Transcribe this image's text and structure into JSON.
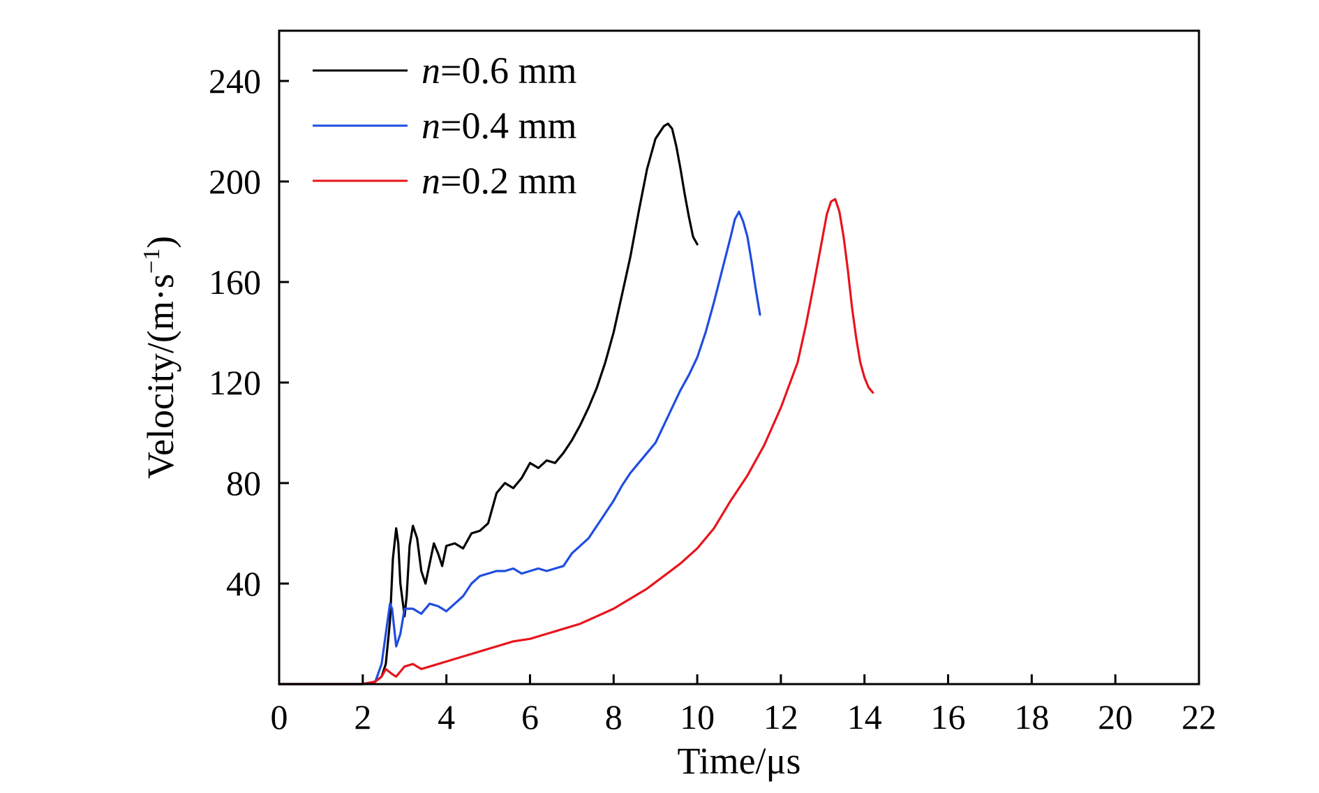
{
  "chart_data": {
    "type": "line",
    "title": "",
    "xlabel": "Time/μs",
    "ylabel_main": "Velocity/(m·s",
    "ylabel_sup": "−1",
    "ylabel_close": ")",
    "xlim": [
      0,
      22
    ],
    "ylim": [
      0,
      260
    ],
    "xticks": [
      0,
      2,
      4,
      6,
      8,
      10,
      12,
      14,
      16,
      18,
      20,
      22
    ],
    "yticks": [
      40,
      80,
      120,
      160,
      200,
      240
    ],
    "grid": false,
    "legend_position": "top-left",
    "series": [
      {
        "name": "n=0.6 mm",
        "name_italic": "n",
        "name_rest": "=0.6 mm",
        "color": "#000000",
        "x": [
          0,
          2.0,
          2.3,
          2.45,
          2.55,
          2.65,
          2.72,
          2.8,
          2.85,
          2.9,
          3.0,
          3.05,
          3.12,
          3.2,
          3.3,
          3.4,
          3.5,
          3.6,
          3.7,
          3.8,
          3.9,
          4.0,
          4.2,
          4.4,
          4.6,
          4.8,
          5.0,
          5.2,
          5.4,
          5.6,
          5.8,
          6.0,
          6.2,
          6.4,
          6.6,
          6.8,
          7.0,
          7.2,
          7.4,
          7.6,
          7.8,
          8.0,
          8.2,
          8.4,
          8.6,
          8.8,
          9.0,
          9.2,
          9.3,
          9.4,
          9.5,
          9.6,
          9.7,
          9.8,
          9.9,
          10.0
        ],
        "y": [
          0,
          0,
          1,
          3,
          8,
          25,
          50,
          62,
          56,
          40,
          27,
          35,
          55,
          63,
          58,
          45,
          40,
          48,
          56,
          52,
          47,
          55,
          56,
          54,
          60,
          61,
          64,
          76,
          80,
          78,
          82,
          88,
          86,
          89,
          88,
          92,
          97,
          103,
          110,
          118,
          128,
          140,
          155,
          170,
          188,
          205,
          217,
          222,
          223,
          221,
          214,
          205,
          195,
          186,
          178,
          175
        ]
      },
      {
        "name": "n=0.4 mm",
        "name_italic": "n",
        "name_rest": "=0.4 mm",
        "color": "#1f4de0",
        "x": [
          0,
          2.0,
          2.3,
          2.45,
          2.55,
          2.65,
          2.7,
          2.8,
          2.9,
          3.0,
          3.2,
          3.4,
          3.6,
          3.8,
          4.0,
          4.2,
          4.4,
          4.6,
          4.8,
          5.0,
          5.2,
          5.4,
          5.6,
          5.8,
          6.0,
          6.2,
          6.4,
          6.6,
          6.8,
          7.0,
          7.2,
          7.4,
          7.6,
          7.8,
          8.0,
          8.2,
          8.4,
          8.6,
          8.8,
          9.0,
          9.2,
          9.4,
          9.6,
          9.8,
          10.0,
          10.2,
          10.4,
          10.6,
          10.8,
          10.9,
          11.0,
          11.1,
          11.2,
          11.3,
          11.4,
          11.5
        ],
        "y": [
          0,
          0,
          1,
          8,
          20,
          32,
          30,
          15,
          20,
          30,
          30,
          28,
          32,
          31,
          29,
          32,
          35,
          40,
          43,
          44,
          45,
          45,
          46,
          44,
          45,
          46,
          45,
          46,
          47,
          52,
          55,
          58,
          63,
          68,
          73,
          79,
          84,
          88,
          92,
          96,
          103,
          110,
          117,
          123,
          130,
          140,
          152,
          165,
          178,
          185,
          188,
          184,
          178,
          168,
          157,
          147
        ]
      },
      {
        "name": "n=0.2 mm",
        "name_italic": "n",
        "name_rest": "=0.2 mm",
        "color": "#e8141c",
        "x": [
          0,
          2.0,
          2.3,
          2.45,
          2.55,
          2.7,
          2.8,
          2.9,
          3.0,
          3.2,
          3.4,
          3.6,
          3.8,
          4.0,
          4.4,
          4.8,
          5.2,
          5.6,
          6.0,
          6.4,
          6.8,
          7.2,
          7.6,
          8.0,
          8.4,
          8.8,
          9.2,
          9.6,
          10.0,
          10.4,
          10.8,
          11.2,
          11.6,
          12.0,
          12.4,
          12.6,
          12.8,
          13.0,
          13.1,
          13.2,
          13.3,
          13.4,
          13.5,
          13.6,
          13.7,
          13.8,
          13.9,
          14.0,
          14.1,
          14.2
        ],
        "y": [
          0,
          0,
          1,
          3,
          6,
          4,
          3,
          5,
          7,
          8,
          6,
          7,
          8,
          9,
          11,
          13,
          15,
          17,
          18,
          20,
          22,
          24,
          27,
          30,
          34,
          38,
          43,
          48,
          54,
          62,
          73,
          83,
          95,
          110,
          128,
          143,
          160,
          178,
          187,
          192,
          193,
          188,
          178,
          165,
          150,
          138,
          128,
          122,
          118,
          116
        ]
      }
    ]
  }
}
